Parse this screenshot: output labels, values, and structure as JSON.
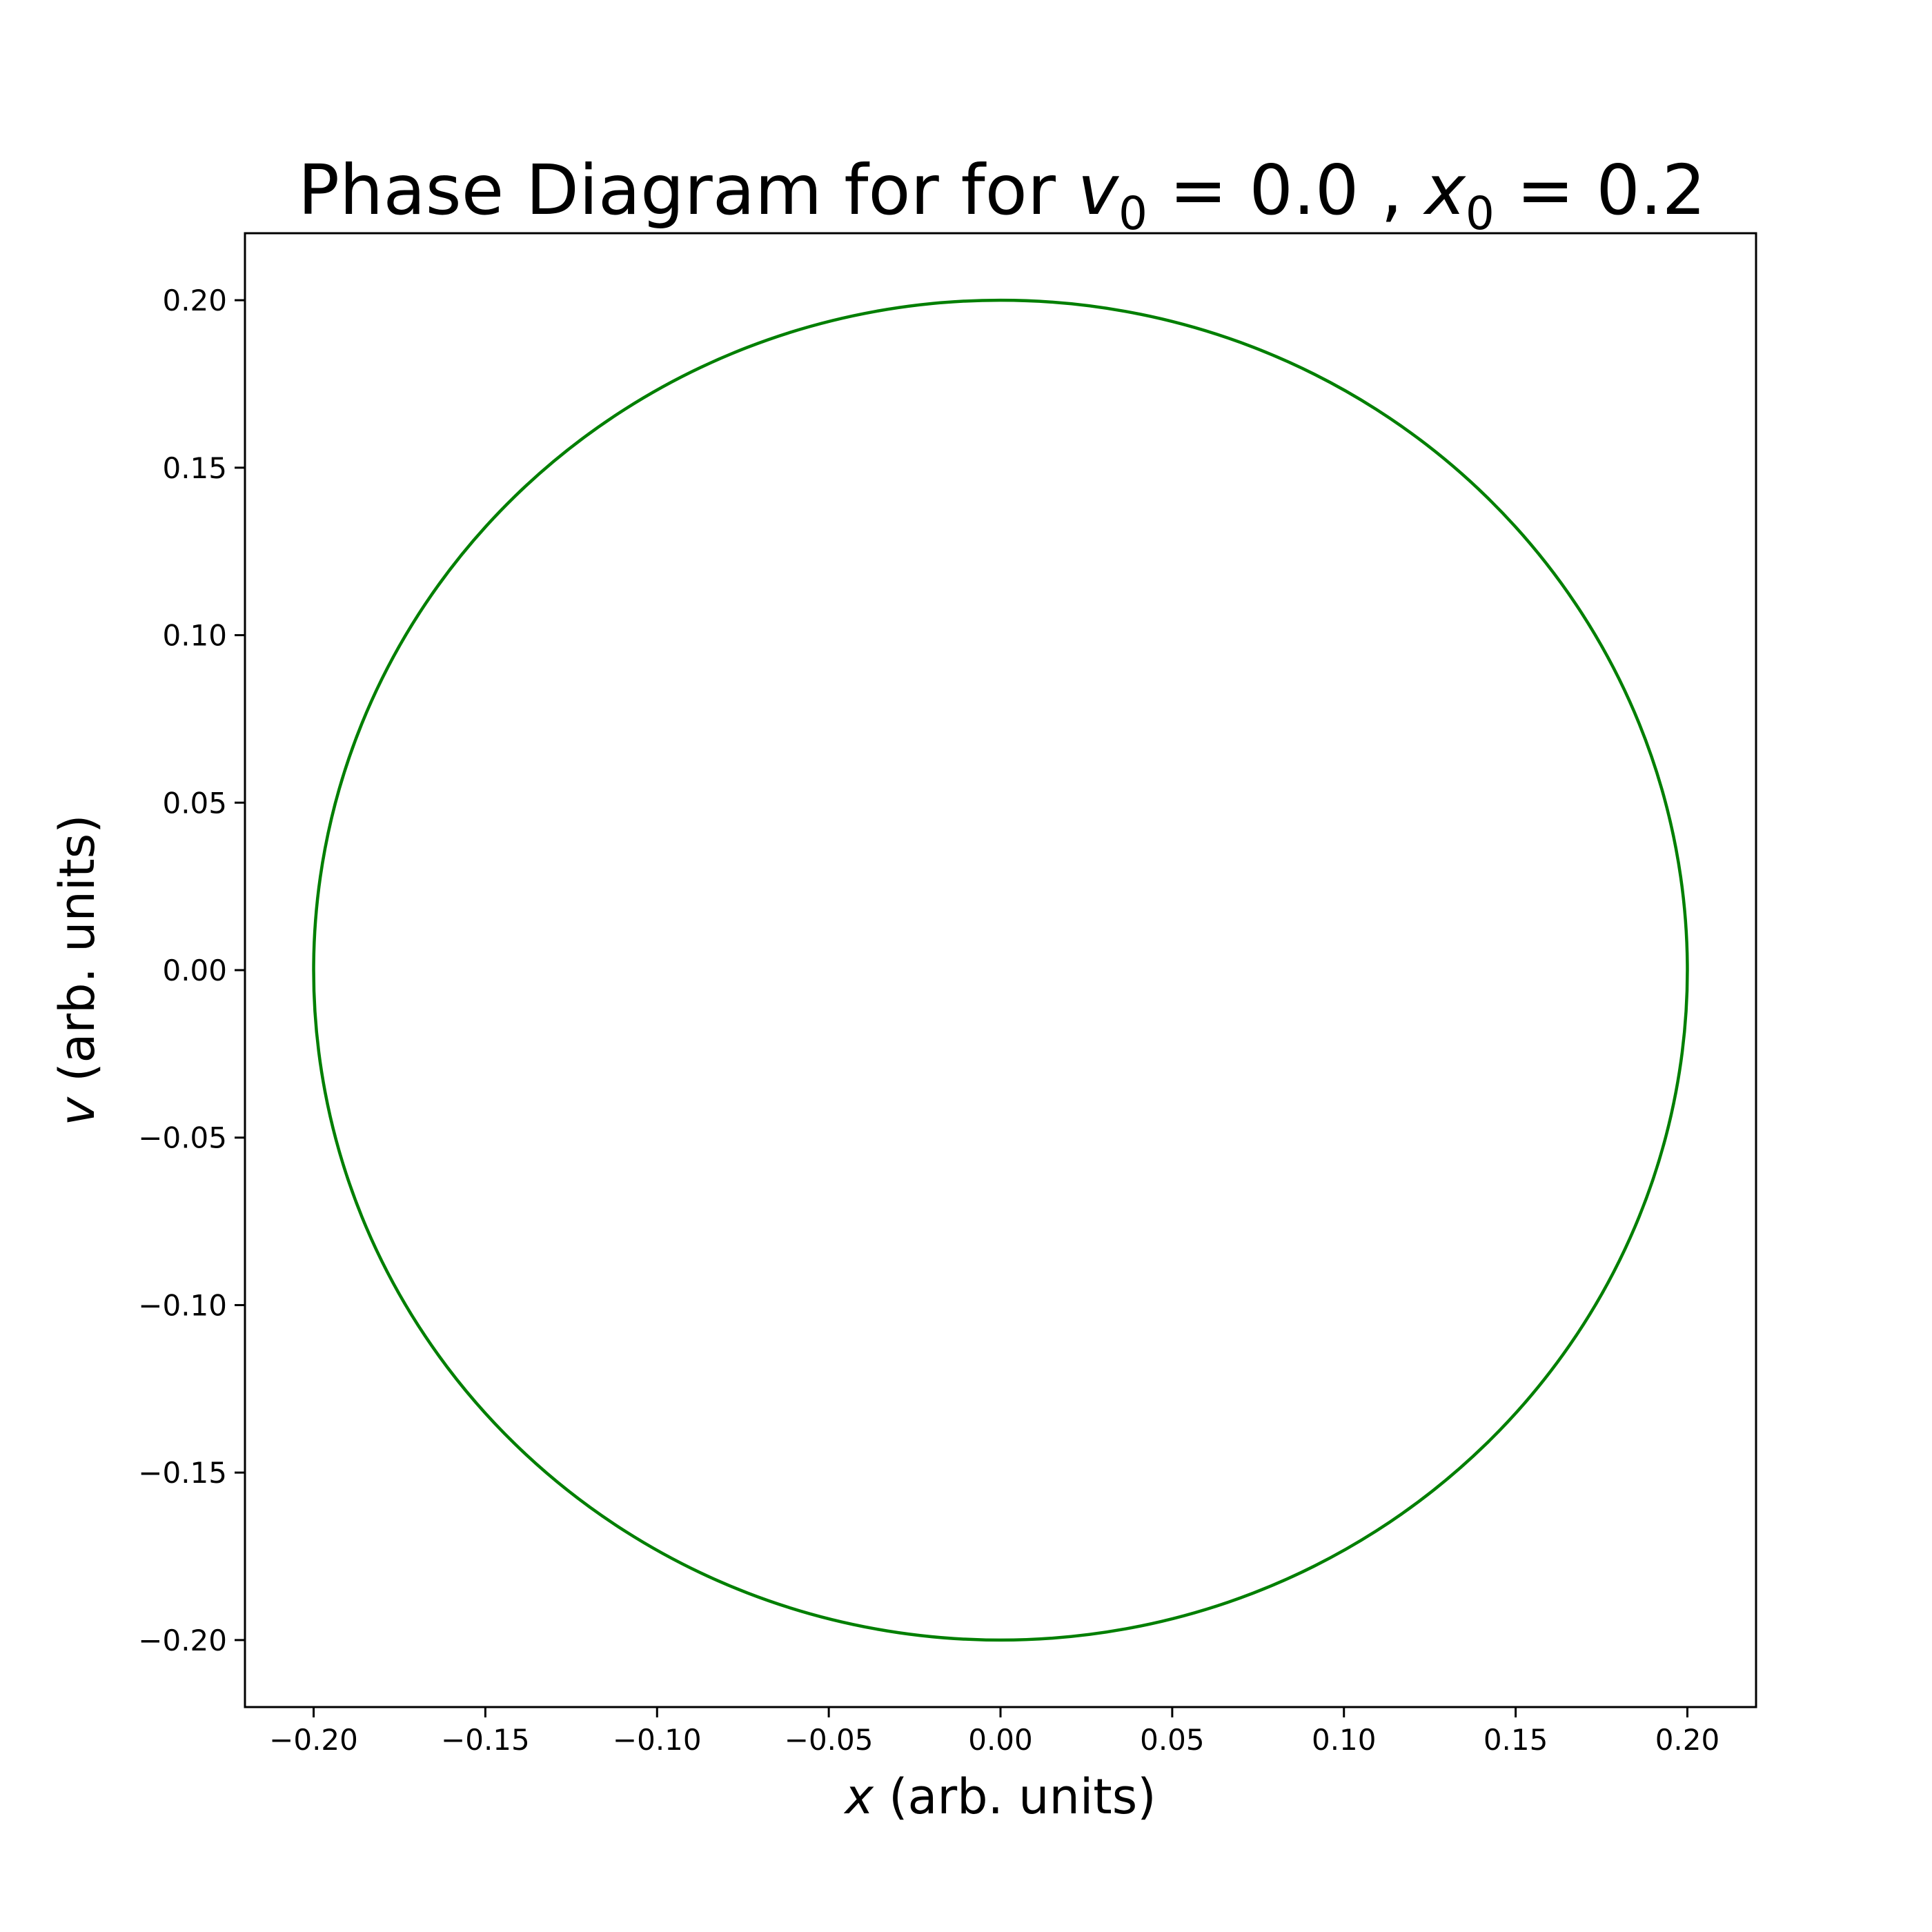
{
  "chart_data": {
    "type": "line",
    "title": {
      "prefix": "Phase Diagram for for ",
      "var1": "v",
      "sub1": "0",
      "val1": " = 0.0 , ",
      "var2": "x",
      "sub2": "0",
      "val2": " = 0.2"
    },
    "xlabel": {
      "var": "x",
      "rest": " (arb. units)"
    },
    "ylabel": {
      "var": "v",
      "rest": " (arb. units)"
    },
    "xlim": [
      -0.22,
      0.22
    ],
    "ylim": [
      -0.22,
      0.22
    ],
    "xticks": [
      -0.2,
      -0.15,
      -0.1,
      -0.05,
      0.0,
      0.05,
      0.1,
      0.15,
      0.2
    ],
    "yticks": [
      -0.2,
      -0.15,
      -0.1,
      -0.05,
      0.0,
      0.05,
      0.1,
      0.15,
      0.2
    ],
    "xtick_labels": [
      "−0.20",
      "−0.15",
      "−0.10",
      "−0.05",
      "0.00",
      "0.05",
      "0.10",
      "0.15",
      "0.20"
    ],
    "ytick_labels": [
      "−0.20",
      "−0.15",
      "−0.10",
      "−0.05",
      "0.00",
      "0.05",
      "0.10",
      "0.15",
      "0.20"
    ],
    "grid": false,
    "series": [
      {
        "shape": "circle",
        "center": [
          0.0,
          0.0
        ],
        "radius": 0.2,
        "color": "#007f00"
      }
    ]
  }
}
